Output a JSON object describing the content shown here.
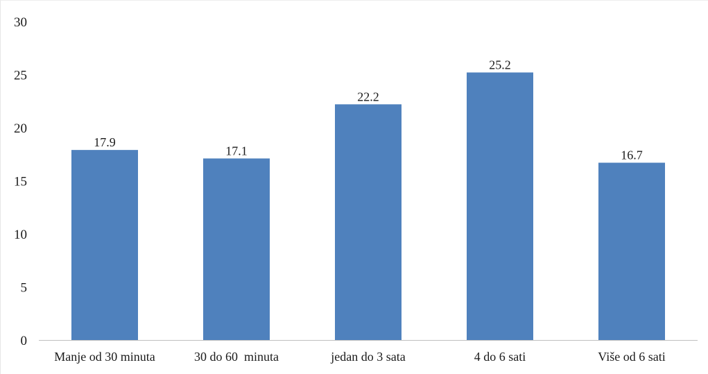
{
  "chart_data": {
    "type": "bar",
    "categories": [
      "Manje od 30 minuta",
      "30 do 60  minuta",
      "jedan do 3 sata",
      "4 do 6 sati",
      "Više od 6 sati"
    ],
    "values": [
      17.9,
      17.1,
      22.2,
      25.2,
      16.7
    ],
    "data_labels": [
      "17.9",
      "17.1",
      "22.2",
      "25.2",
      "16.7"
    ],
    "yticks": [
      "0",
      "5",
      "10",
      "15",
      "20",
      "25",
      "30"
    ],
    "ylim": [
      0,
      30
    ],
    "grid": false,
    "legend": "none",
    "bar_color": "#4f81bd",
    "axis_color": "#bfbfbf"
  }
}
